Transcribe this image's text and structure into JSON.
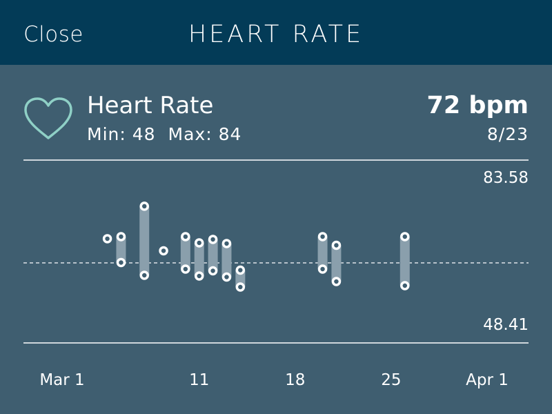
{
  "header": {
    "close_label": "Close",
    "title": "HEART RATE"
  },
  "summary": {
    "heart_icon": "heart-outline-icon",
    "metric_name": "Heart Rate",
    "min_label": "Min: 48",
    "max_label": "Max: 84",
    "current_value": "72 bpm",
    "current_date": "8/23"
  },
  "colors": {
    "header_bg": "#033b57",
    "page_bg": "#3f5e70",
    "heart": "#8fd0c6",
    "bar": "#8a9fac",
    "text": "#ffffff"
  },
  "chart_data": {
    "type": "range-bar",
    "y_max_label": "83.58",
    "y_min_label": "48.41",
    "ylim": [
      48.41,
      83.58
    ],
    "average_line": 66.0,
    "x_labels": [
      {
        "day": 1,
        "label": "Mar 1"
      },
      {
        "day": 11,
        "label": "11"
      },
      {
        "day": 18,
        "label": "18"
      },
      {
        "day": 25,
        "label": "25"
      },
      {
        "day": 32,
        "label": "Apr 1"
      }
    ],
    "points": [
      {
        "day": 4.3,
        "low": 73.0,
        "high": 73.0
      },
      {
        "day": 5.3,
        "low": 66.1,
        "high": 73.6
      },
      {
        "day": 7.0,
        "low": 62.4,
        "high": 82.4
      },
      {
        "day": 8.4,
        "low": 69.5,
        "high": 69.5
      },
      {
        "day": 10.0,
        "low": 64.2,
        "high": 73.6
      },
      {
        "day": 11.0,
        "low": 62.2,
        "high": 71.8
      },
      {
        "day": 12.0,
        "low": 63.7,
        "high": 72.8
      },
      {
        "day": 13.0,
        "low": 61.9,
        "high": 71.6
      },
      {
        "day": 14.0,
        "low": 59.0,
        "high": 63.9
      },
      {
        "day": 20.0,
        "low": 64.2,
        "high": 73.6
      },
      {
        "day": 21.0,
        "low": 60.6,
        "high": 71.1
      },
      {
        "day": 26.0,
        "low": 59.4,
        "high": 73.6
      }
    ]
  }
}
